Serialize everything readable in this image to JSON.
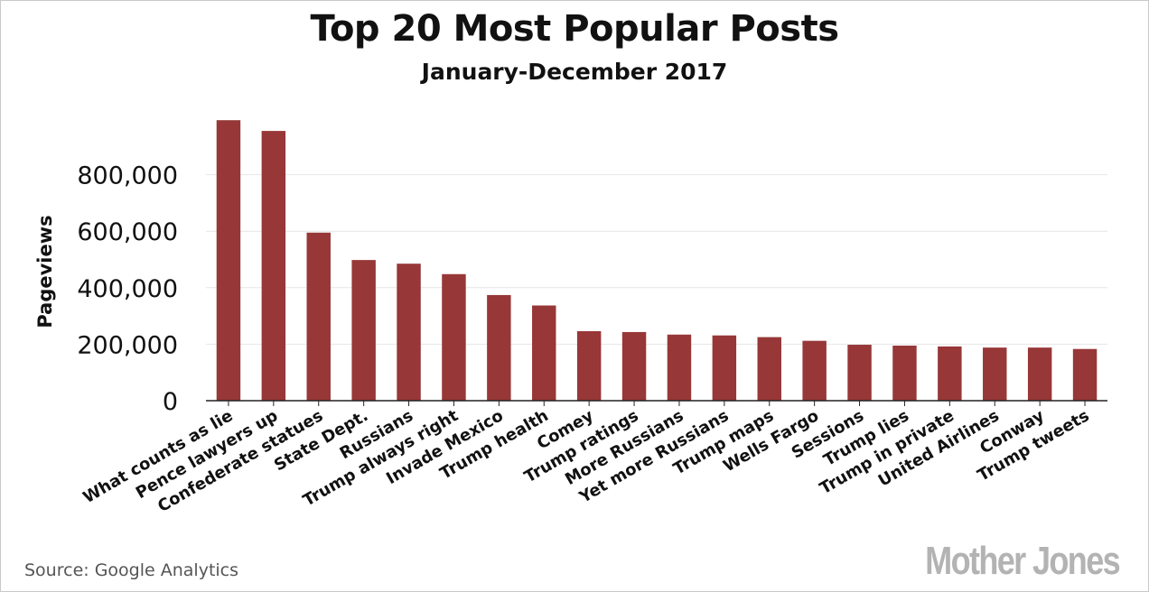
{
  "source_text": "Source:  Google Analytics",
  "logo_text": "Mother Jones",
  "colors": {
    "bar": "#973737",
    "grid": "#e6e6e6",
    "axis": "#222222",
    "text": "#111111"
  },
  "chart_data": {
    "type": "bar",
    "title": "Top 20 Most Popular Posts",
    "subtitle": "January-December 2017",
    "xlabel": "",
    "ylabel": "Pageviews",
    "ylim": [
      0,
      1000000
    ],
    "yticks": [
      0,
      200000,
      400000,
      600000,
      800000
    ],
    "ytick_labels": [
      "0",
      "200,000",
      "400,000",
      "600,000",
      "800,000"
    ],
    "grid": true,
    "categories": [
      "What counts as lie",
      "Pence lawyers up",
      "Confederate statues",
      "State Dept.",
      "Russians",
      "Trump always right",
      "Invade Mexico",
      "Trump health",
      "Comey",
      "Trump ratings",
      "More Russians",
      "Yet more Russians",
      "Trump maps",
      "Wells Fargo",
      "Sessions",
      "Trump lies",
      "Trump in private",
      "United Airlines",
      "Conway",
      "Trump tweets"
    ],
    "values": [
      993000,
      955000,
      595000,
      498000,
      485000,
      448000,
      374000,
      337000,
      246000,
      243000,
      234000,
      231000,
      225000,
      212000,
      198000,
      195000,
      192000,
      188000,
      188000,
      183000
    ]
  }
}
